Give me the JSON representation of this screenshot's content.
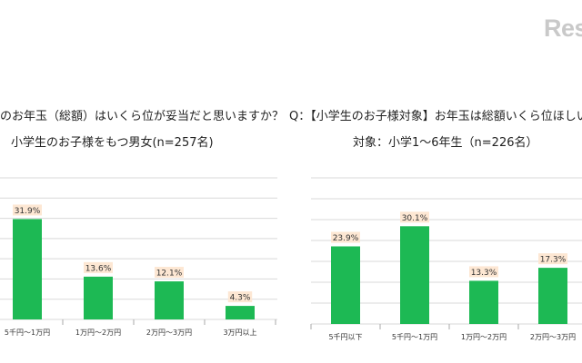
{
  "logo_text": "Res",
  "colors": {
    "bar": "#1db954",
    "label_bg": "#fde7d3",
    "grid": "#d9d9d9"
  },
  "chart_data": [
    {
      "type": "bar",
      "title": "のお年玉（総額）はいくら位が妥当だと思いますか？",
      "subtitle": "小学生のお子様をもつ男女(n=257名)",
      "categories": [
        "5千円～1万円",
        "1万円～2万円",
        "2万円～3万円",
        "3万円以上"
      ],
      "values": [
        31.9,
        13.6,
        12.1,
        4.3
      ],
      "value_labels": [
        "31.9%",
        "13.6%",
        "12.1%",
        "4.3%"
      ],
      "ylim": [
        0,
        45
      ],
      "grid": true
    },
    {
      "type": "bar",
      "title": "Q：【小学生のお子様対象】お年玉は総額いくら位ほしい",
      "subtitle": "対象：小学1～6年生（n=226名）",
      "categories": [
        "5千円以下",
        "5千円～1万円",
        "1万円～2万円",
        "2万円～3万円"
      ],
      "values": [
        23.9,
        30.1,
        13.3,
        17.3
      ],
      "value_labels": [
        "23.9%",
        "30.1%",
        "13.3%",
        "17.3%"
      ],
      "ylim": [
        0,
        45
      ],
      "grid": true
    }
  ]
}
